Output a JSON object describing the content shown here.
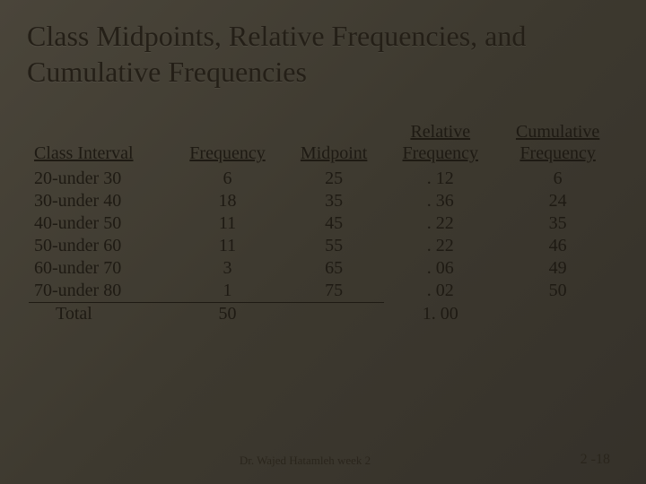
{
  "title": "Class Midpoints, Relative Frequencies, and Cumulative Frequencies",
  "headers": {
    "col1": "Class Interval",
    "col2": "Frequency",
    "col3": "Midpoint",
    "col4_top": "Relative",
    "col4_bottom": "Frequency",
    "col5_top": "Cumulative",
    "col5_bottom": "Frequency"
  },
  "rows": [
    {
      "interval": "20-under 30",
      "freq": "6",
      "mid": "25",
      "rel": ". 12",
      "cum": "6"
    },
    {
      "interval": "30-under 40",
      "freq": "18",
      "mid": "35",
      "rel": ". 36",
      "cum": "24"
    },
    {
      "interval": "40-under 50",
      "freq": "11",
      "mid": "45",
      "rel": ". 22",
      "cum": "35"
    },
    {
      "interval": "50-under 60",
      "freq": "11",
      "mid": "55",
      "rel": ". 22",
      "cum": "46"
    },
    {
      "interval": "60-under 70",
      "freq": "3",
      "mid": "65",
      "rel": ". 06",
      "cum": "49"
    },
    {
      "interval": "70-under 80",
      "freq": "1",
      "mid": "75",
      "rel": ". 02",
      "cum": "50"
    }
  ],
  "total": {
    "label": "Total",
    "freq": "50",
    "rel": "1. 00"
  },
  "footer": {
    "center": "Dr. Wajed Hatamleh week 2",
    "right": "2 -18"
  },
  "colors": {
    "bg_start": "#4a453a",
    "bg_end": "#35312a",
    "text": "#1e1a13"
  }
}
